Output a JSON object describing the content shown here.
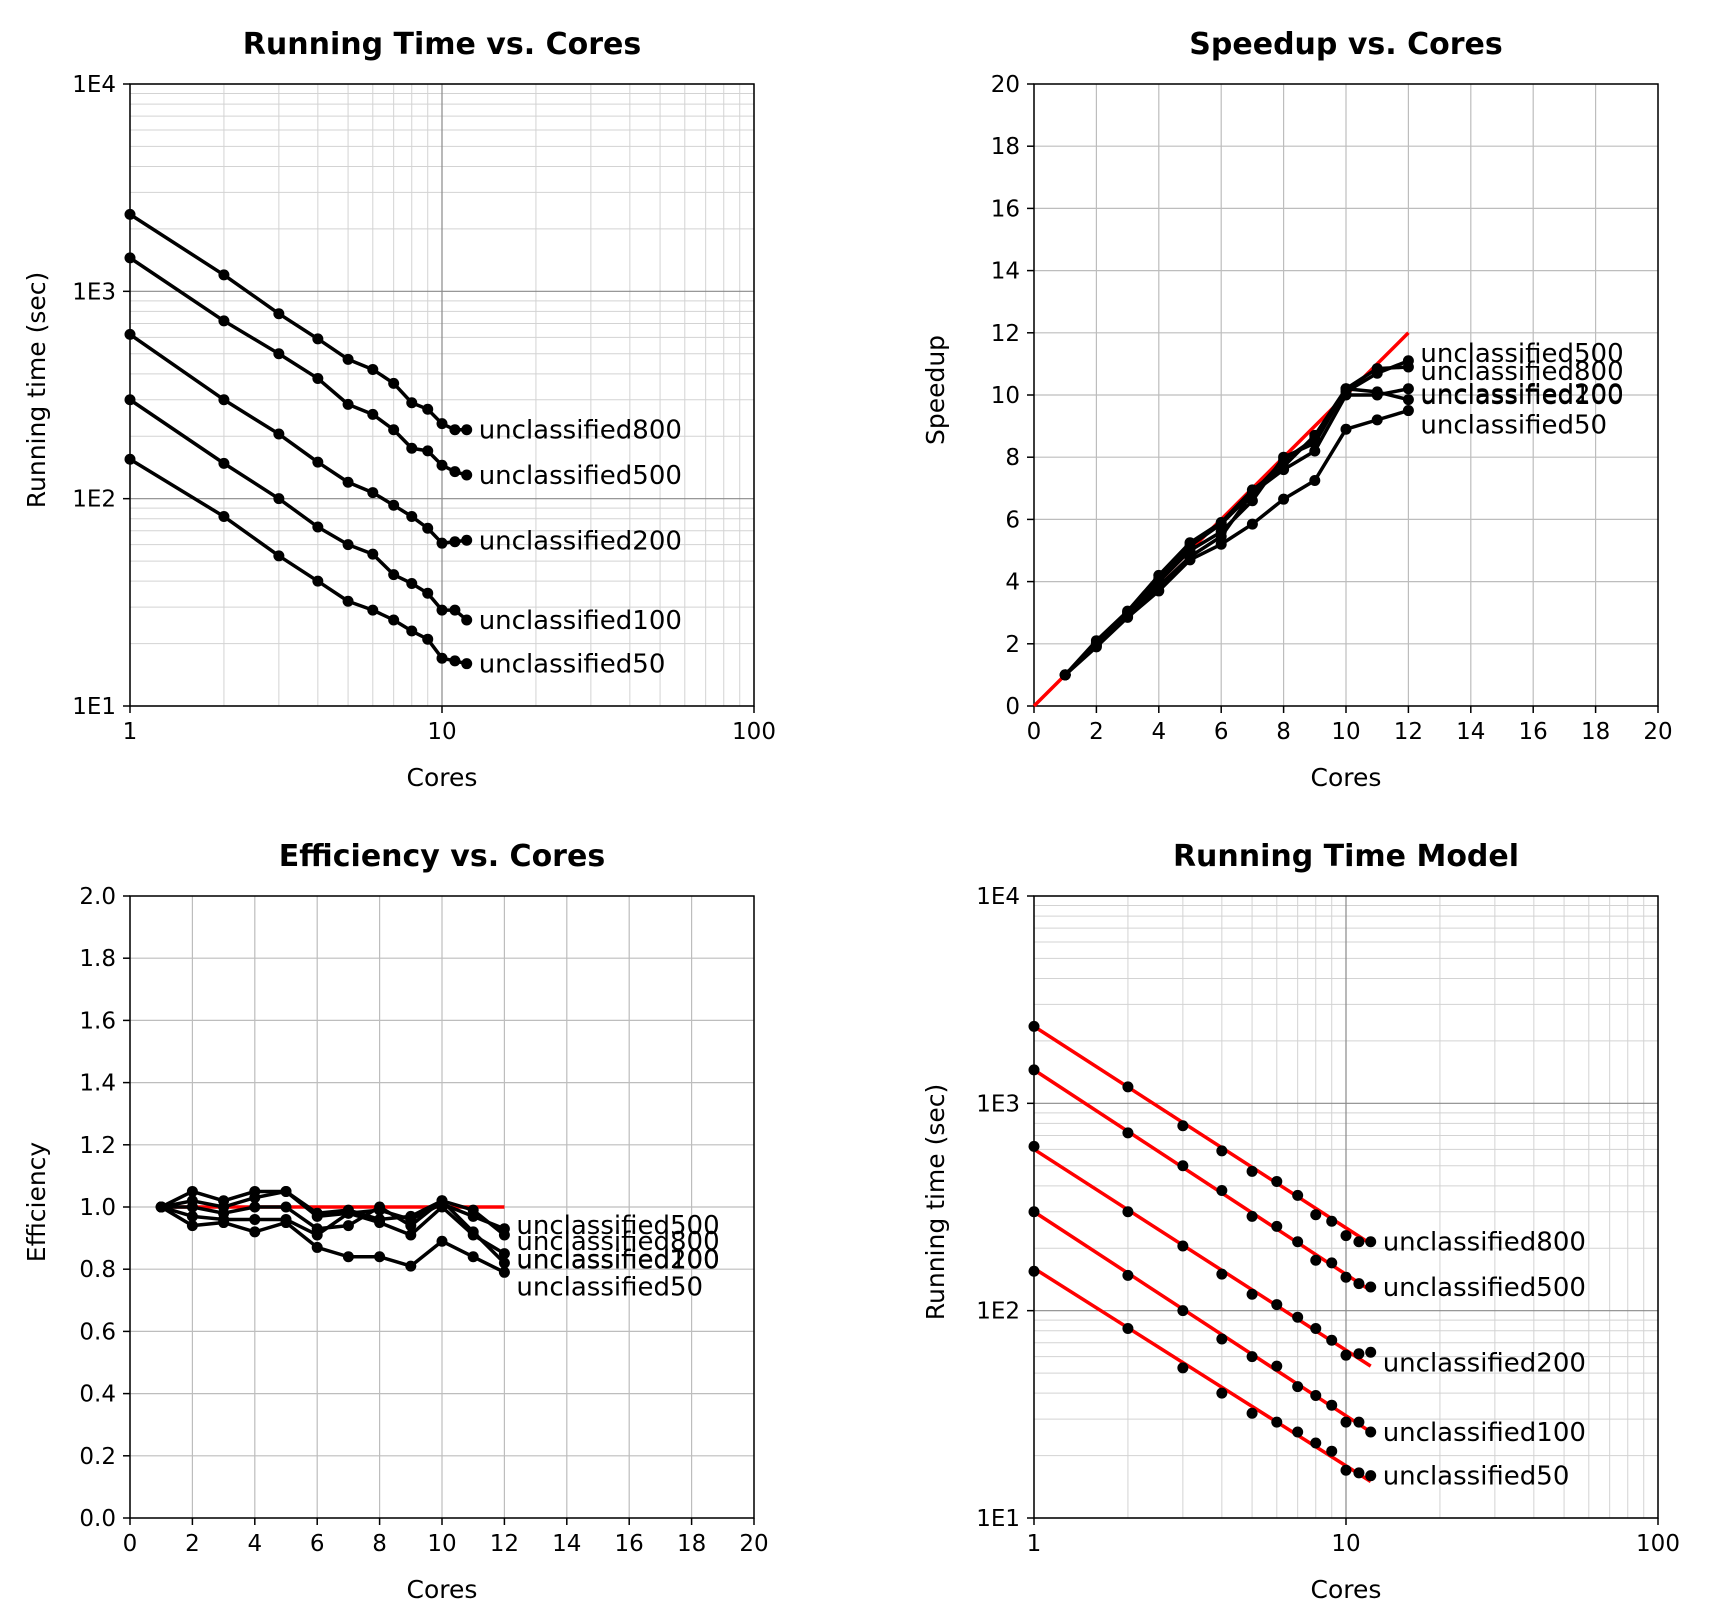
{
  "chart_data": [
    {
      "id": "running-time",
      "type": "line",
      "title": "Running Time vs. Cores",
      "xlabel": "Cores",
      "ylabel": "Running time (sec)",
      "xscale": "log",
      "yscale": "log",
      "xlim": [
        1,
        100
      ],
      "ylim": [
        10,
        10000
      ],
      "xticks": [
        {
          "v": 1,
          "label": "1"
        },
        {
          "v": 10,
          "label": "10"
        },
        {
          "v": 100,
          "label": "100"
        }
      ],
      "yticks": [
        {
          "v": 10,
          "label": "1E1"
        },
        {
          "v": 100,
          "label": "1E2"
        },
        {
          "v": 1000,
          "label": "1E3"
        },
        {
          "v": 10000,
          "label": "1E4"
        }
      ],
      "x": [
        1,
        2,
        3,
        4,
        5,
        6,
        7,
        8,
        9,
        10,
        11,
        12
      ],
      "series": [
        {
          "name": "unclassified800",
          "values": [
            2350,
            1200,
            780,
            590,
            470,
            420,
            360,
            290,
            270,
            230,
            215,
            215
          ]
        },
        {
          "name": "unclassified500",
          "values": [
            1450,
            720,
            500,
            380,
            285,
            255,
            215,
            175,
            170,
            145,
            135,
            130
          ]
        },
        {
          "name": "unclassified200",
          "values": [
            620,
            300,
            205,
            150,
            120,
            107,
            93,
            82,
            72,
            61,
            62,
            63
          ]
        },
        {
          "name": "unclassified100",
          "values": [
            300,
            148,
            100,
            73,
            60,
            54,
            43,
            39,
            35,
            29,
            29,
            26
          ]
        },
        {
          "name": "unclassified50",
          "values": [
            155,
            82,
            53,
            40,
            32,
            29,
            26,
            23,
            21,
            17,
            16.5,
            16
          ]
        }
      ]
    },
    {
      "id": "speedup",
      "type": "line",
      "title": "Speedup vs. Cores",
      "xlabel": "Cores",
      "ylabel": "Speedup",
      "xlim": [
        0,
        20
      ],
      "ylim": [
        0,
        20
      ],
      "xticks": [
        {
          "v": 0,
          "label": "0"
        },
        {
          "v": 2,
          "label": "2"
        },
        {
          "v": 4,
          "label": "4"
        },
        {
          "v": 6,
          "label": "6"
        },
        {
          "v": 8,
          "label": "8"
        },
        {
          "v": 10,
          "label": "10"
        },
        {
          "v": 12,
          "label": "12"
        },
        {
          "v": 14,
          "label": "14"
        },
        {
          "v": 16,
          "label": "16"
        },
        {
          "v": 18,
          "label": "18"
        },
        {
          "v": 20,
          "label": "20"
        }
      ],
      "yticks": [
        {
          "v": 0,
          "label": "0"
        },
        {
          "v": 2,
          "label": "2"
        },
        {
          "v": 4,
          "label": "4"
        },
        {
          "v": 6,
          "label": "6"
        },
        {
          "v": 8,
          "label": "8"
        },
        {
          "v": 10,
          "label": "10"
        },
        {
          "v": 12,
          "label": "12"
        },
        {
          "v": 14,
          "label": "14"
        },
        {
          "v": 16,
          "label": "16"
        },
        {
          "v": 18,
          "label": "18"
        },
        {
          "v": 20,
          "label": "20"
        }
      ],
      "reference_line": {
        "x": [
          0,
          12
        ],
        "y": [
          0,
          12
        ],
        "color": "#ff0000"
      },
      "x": [
        1,
        2,
        3,
        4,
        5,
        6,
        7,
        8,
        9,
        10,
        11,
        12
      ],
      "series": [
        {
          "name": "unclassified500",
          "values": [
            1.0,
            2.05,
            3.0,
            4.1,
            5.15,
            5.85,
            6.85,
            7.9,
            8.6,
            10.1,
            10.7,
            11.1
          ]
        },
        {
          "name": "unclassified800",
          "values": [
            1.0,
            2.0,
            2.95,
            4.0,
            5.0,
            5.6,
            6.6,
            8.0,
            8.45,
            10.2,
            10.85,
            10.9
          ]
        },
        {
          "name": "unclassified200",
          "values": [
            1.0,
            2.1,
            3.05,
            4.2,
            5.25,
            5.9,
            6.95,
            7.7,
            8.7,
            10.2,
            10.1,
            9.85
          ]
        },
        {
          "name": "unclassified100",
          "values": [
            1.0,
            1.95,
            2.9,
            3.85,
            4.8,
            5.45,
            6.85,
            7.6,
            8.2,
            10.0,
            10.0,
            10.2
          ]
        },
        {
          "name": "unclassified50",
          "values": [
            1.0,
            1.9,
            2.85,
            3.7,
            4.7,
            5.2,
            5.85,
            6.65,
            7.25,
            8.9,
            9.2,
            9.5
          ]
        }
      ]
    },
    {
      "id": "efficiency",
      "type": "line",
      "title": "Efficiency vs. Cores",
      "xlabel": "Cores",
      "ylabel": "Efficiency",
      "xlim": [
        0,
        20
      ],
      "ylim": [
        0,
        2.0
      ],
      "xticks": [
        {
          "v": 0,
          "label": "0"
        },
        {
          "v": 2,
          "label": "2"
        },
        {
          "v": 4,
          "label": "4"
        },
        {
          "v": 6,
          "label": "6"
        },
        {
          "v": 8,
          "label": "8"
        },
        {
          "v": 10,
          "label": "10"
        },
        {
          "v": 12,
          "label": "12"
        },
        {
          "v": 14,
          "label": "14"
        },
        {
          "v": 16,
          "label": "16"
        },
        {
          "v": 18,
          "label": "18"
        },
        {
          "v": 20,
          "label": "20"
        }
      ],
      "yticks": [
        {
          "v": 0,
          "label": "0.0"
        },
        {
          "v": 0.2,
          "label": "0.2"
        },
        {
          "v": 0.4,
          "label": "0.4"
        },
        {
          "v": 0.6,
          "label": "0.6"
        },
        {
          "v": 0.8,
          "label": "0.8"
        },
        {
          "v": 1.0,
          "label": "1.0"
        },
        {
          "v": 1.2,
          "label": "1.2"
        },
        {
          "v": 1.4,
          "label": "1.4"
        },
        {
          "v": 1.6,
          "label": "1.6"
        },
        {
          "v": 1.8,
          "label": "1.8"
        },
        {
          "v": 2.0,
          "label": "2.0"
        }
      ],
      "reference_line": {
        "x": [
          1,
          12
        ],
        "y": [
          1.0,
          1.0
        ],
        "color": "#ff0000"
      },
      "x": [
        1,
        2,
        3,
        4,
        5,
        6,
        7,
        8,
        9,
        10,
        11,
        12
      ],
      "series": [
        {
          "name": "unclassified500",
          "values": [
            1.0,
            1.02,
            1.0,
            1.03,
            1.05,
            0.97,
            0.98,
            0.99,
            0.96,
            1.01,
            0.97,
            0.93
          ]
        },
        {
          "name": "unclassified800",
          "values": [
            1.0,
            1.0,
            0.98,
            1.0,
            1.0,
            0.93,
            0.94,
            1.0,
            0.94,
            1.02,
            0.99,
            0.91
          ]
        },
        {
          "name": "unclassified200",
          "values": [
            1.0,
            1.05,
            1.02,
            1.05,
            1.05,
            0.98,
            0.99,
            0.96,
            0.97,
            1.02,
            0.92,
            0.82
          ]
        },
        {
          "name": "unclassified100",
          "values": [
            1.0,
            0.97,
            0.96,
            0.96,
            0.96,
            0.91,
            0.98,
            0.95,
            0.91,
            1.0,
            0.91,
            0.85
          ]
        },
        {
          "name": "unclassified50",
          "values": [
            1.0,
            0.94,
            0.95,
            0.92,
            0.95,
            0.87,
            0.84,
            0.84,
            0.81,
            0.89,
            0.84,
            0.79
          ]
        }
      ]
    },
    {
      "id": "running-time-model",
      "type": "scatter",
      "title": "Running Time Model",
      "xlabel": "Cores",
      "ylabel": "Running time (sec)",
      "xscale": "log",
      "yscale": "log",
      "xlim": [
        1,
        100
      ],
      "ylim": [
        10,
        10000
      ],
      "xticks": [
        {
          "v": 1,
          "label": "1"
        },
        {
          "v": 10,
          "label": "10"
        },
        {
          "v": 100,
          "label": "100"
        }
      ],
      "yticks": [
        {
          "v": 10,
          "label": "1E1"
        },
        {
          "v": 100,
          "label": "1E2"
        },
        {
          "v": 1000,
          "label": "1E3"
        },
        {
          "v": 10000,
          "label": "1E4"
        }
      ],
      "x": [
        1,
        2,
        3,
        4,
        5,
        6,
        7,
        8,
        9,
        10,
        11,
        12
      ],
      "model_color": "#ff0000",
      "series": [
        {
          "name": "unclassified800",
          "values": [
            2350,
            1200,
            780,
            590,
            470,
            420,
            360,
            290,
            270,
            230,
            215,
            215
          ],
          "model": [
            2350,
            210
          ]
        },
        {
          "name": "unclassified500",
          "values": [
            1450,
            720,
            500,
            380,
            285,
            255,
            215,
            175,
            170,
            145,
            135,
            130
          ],
          "model": [
            1450,
            125
          ]
        },
        {
          "name": "unclassified200",
          "values": [
            620,
            300,
            205,
            150,
            120,
            107,
            93,
            82,
            72,
            61,
            62,
            63
          ],
          "model": [
            600,
            54
          ]
        },
        {
          "name": "unclassified100",
          "values": [
            300,
            148,
            100,
            73,
            60,
            54,
            43,
            39,
            35,
            29,
            29,
            26
          ],
          "model": [
            300,
            26
          ]
        },
        {
          "name": "unclassified50",
          "values": [
            155,
            82,
            53,
            40,
            32,
            29,
            26,
            23,
            21,
            17,
            16.5,
            16
          ],
          "model": [
            160,
            15
          ]
        }
      ]
    }
  ]
}
